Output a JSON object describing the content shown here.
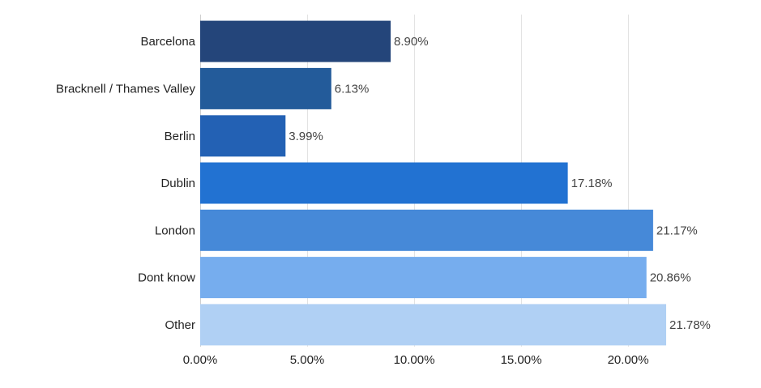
{
  "chart_data": {
    "type": "bar",
    "orientation": "horizontal",
    "categories": [
      "Barcelona",
      "Bracknell / Thames Valley",
      "Berlin",
      "Dublin",
      "London",
      "Dont know",
      "Other"
    ],
    "values": [
      8.9,
      6.13,
      3.99,
      17.18,
      21.17,
      20.86,
      21.78
    ],
    "value_labels": [
      "8.90%",
      "6.13%",
      "3.99%",
      "17.18%",
      "21.17%",
      "20.86%",
      "21.78%"
    ],
    "x_ticks": [
      0,
      5,
      10,
      15,
      20
    ],
    "x_tick_labels": [
      "0.00%",
      "5.00%",
      "10.00%",
      "15.00%",
      "20.00%"
    ],
    "xlim": [
      0,
      25
    ],
    "grid": true,
    "legend": "none",
    "bar_colors": [
      "#24457a",
      "#235b9a",
      "#2361b4",
      "#2272d2",
      "#4689d8",
      "#76adee",
      "#b0d0f4"
    ]
  }
}
